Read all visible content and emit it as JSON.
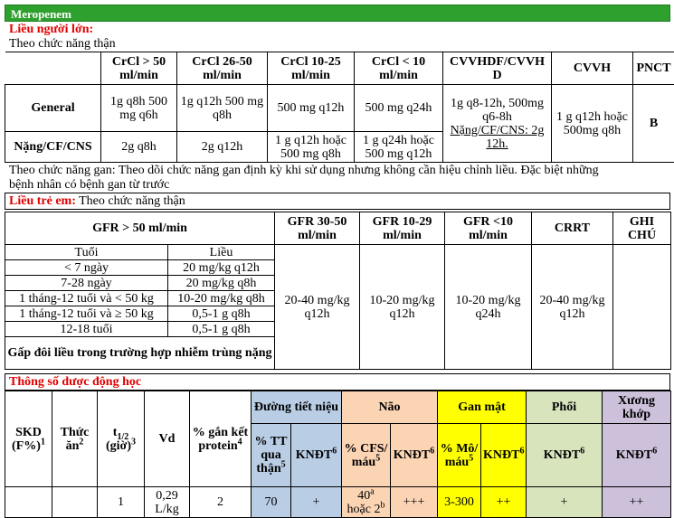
{
  "drug_title": "Meropenem",
  "adult": {
    "heading": "Liều người lớn:",
    "subheading": "Theo chức năng thận",
    "columns": [
      "CrCl > 50 ml/min",
      "CrCl 26-50 ml/min",
      "CrCl 10-25 ml/min",
      "CrCl < 10 ml/min",
      "CVVHDF/CVVHD",
      "CVVH",
      "PNCT"
    ],
    "rows": [
      {
        "label": "General",
        "values": [
          "1g q8h 500 mg q6h",
          "1g q12h 500 mg q8h",
          "500 mg q12h",
          "500 mg q24h"
        ]
      },
      {
        "label": "Nặng/CF/CNS",
        "values": [
          "2g q8h",
          "2g q12h",
          "1 g q12h hoặc 500 mg q8h",
          "1 g q24h hoặc 500 mg q12h"
        ]
      }
    ],
    "cvvhdf_general": "1g q8-12h, 500mg q6-8h",
    "cvvhdf_severe": "Nặng/CF/CNS: 2g 12h.",
    "cvvh": "1 g q12h hoặc 500mg q8h",
    "pnct": "B",
    "hepatic_line1": "Theo chức năng gan: Theo dõi chức năng gan định kỳ khi sử dụng nhưng không cần hiệu chỉnh liều. Đặc biệt những",
    "hepatic_line2": "bệnh nhân có bệnh gan từ trước"
  },
  "child": {
    "heading": "Liều trẻ em:",
    "subheading": "Theo chức năng thận",
    "gfr_gt50": "GFR > 50 ml/min",
    "age_header": "Tuổi",
    "dose_header": "Liều",
    "age_rows": [
      {
        "age": "< 7 ngày",
        "dose": "20 mg/kg q12h"
      },
      {
        "age": "7-28 ngày",
        "dose": "20 mg/kg q8h"
      },
      {
        "age": "1 tháng-12 tuổi và < 50 kg",
        "dose": "10-20 mg/kg q8h"
      },
      {
        "age": "1 tháng-12 tuổi và ≥ 50 kg",
        "dose": "0,5-1 g q8h"
      },
      {
        "age": "12-18 tuổi",
        "dose": "0,5-1 g q8h"
      }
    ],
    "double_note": "Gấp đôi liều trong trường hợp nhiễm trùng nặng",
    "columns": [
      "GFR 30-50 ml/min",
      "GFR 10-29 ml/min",
      "GFR <10 ml/min",
      "CRRT",
      "GHI CHÚ"
    ],
    "values": [
      "20-40 mg/kg q12h",
      "10-20 mg/kg q12h",
      "10-20 mg/kg q24h",
      "20-40 mg/kg q12h",
      ""
    ]
  },
  "pk": {
    "heading": "Thông số dược động học",
    "skd": "SKD (F%)",
    "skd_sup": "1",
    "thuc_an": "Thức ăn",
    "thuc_an_sup": "2",
    "t_half": "t",
    "t_half_sub": "1/2",
    "t_half_rest": "(giờ)",
    "t_half_sup": "3",
    "vd": "Vd",
    "protein": "% gắn kết protein",
    "protein_sup": "4",
    "groups": {
      "urinary": "Đường tiết niệu",
      "brain": "Não",
      "bile": "Gan mật",
      "lung": "Phổi",
      "bone": "Xương khớp"
    },
    "urinary_pct": "% TT qua thận",
    "urinary_pct_sup": "5",
    "brain_pct": "% CFS/ máu",
    "brain_pct_sup": "5",
    "bile_pct": "% Mô/ máu",
    "bile_pct_sup": "5",
    "kndt": "KNĐT",
    "kndt_sup": "6",
    "values": {
      "skd": "",
      "thuc_an": "",
      "t_half": "1",
      "vd": "0,29 L/kg",
      "protein": "2",
      "urinary_pct": "70",
      "urinary_kndt": "+",
      "brain_pct_a": "40",
      "brain_pct_a_sup": "a",
      "brain_pct_b_pre": "hoặc 2",
      "brain_pct_b_sup": "b",
      "brain_kndt": "+++",
      "bile_pct": "3-300",
      "bile_kndt": "++",
      "lung_kndt": "+",
      "bone_kndt": "++"
    },
    "colors": {
      "urinary": "#b9cde5",
      "brain": "#fbd4b4",
      "bile": "#ffff00",
      "lung": "#d7e4bc",
      "bone": "#ccc0da"
    }
  }
}
